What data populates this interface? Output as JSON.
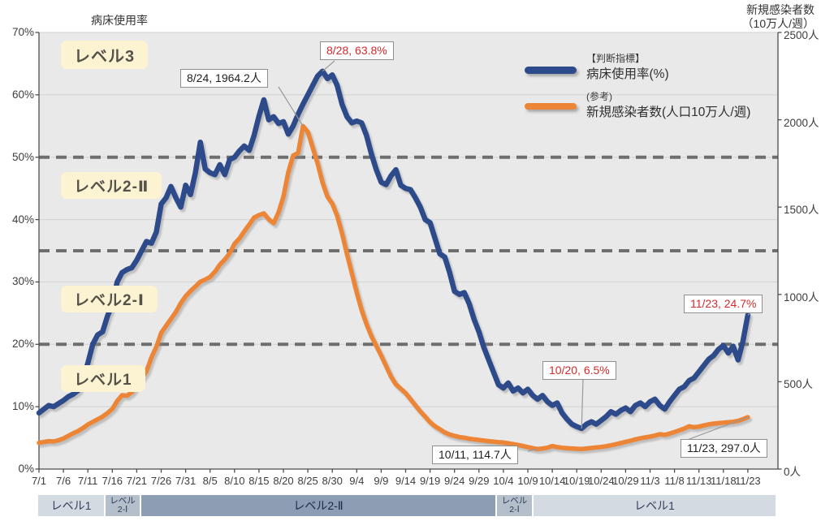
{
  "titles": {
    "left_axis_title": "病床使用率",
    "right_axis_title_line1": "新規感染者数",
    "right_axis_title_line2": "（10万人/週）"
  },
  "legend": {
    "group1_tag": "【判断指標】",
    "group1_label": "病床使用率(%)",
    "group2_tag": "(参考)",
    "group2_label": "新規感染者数(人口10万人/週)"
  },
  "level_zone_labels": [
    "レベル3",
    "レベル2-Ⅱ",
    "レベル2-Ⅰ",
    "レベル1"
  ],
  "level_bar": {
    "segments": [
      {
        "label": "レベル1",
        "from": "7/1",
        "to": "7/14"
      },
      {
        "label": "レベル\n2-Ⅰ",
        "from": "7/14",
        "to": "7/21"
      },
      {
        "label": "レベル2-Ⅱ",
        "from": "7/21",
        "to": "10/2"
      },
      {
        "label": "レベル\n2-Ⅰ",
        "from": "10/2",
        "to": "10/9"
      },
      {
        "label": "レベル1",
        "from": "10/9",
        "to": "11/23"
      }
    ]
  },
  "chart_data": {
    "type": "line",
    "x_start_date": "7/1",
    "x_end_date": "11/23",
    "x_tick_labels": [
      "7/1",
      "7/6",
      "7/11",
      "7/16",
      "7/21",
      "7/26",
      "7/31",
      "8/5",
      "8/10",
      "8/15",
      "8/20",
      "8/25",
      "8/30",
      "9/4",
      "9/9",
      "9/14",
      "9/19",
      "9/24",
      "9/29",
      "10/4",
      "10/9",
      "10/14",
      "10/19",
      "10/24",
      "10/29",
      "11/3",
      "11/8",
      "11/13",
      "11/18",
      "11/23"
    ],
    "left_axis": {
      "title": "病床使用率",
      "unit": "%",
      "min": 0,
      "max": 70,
      "tick_step": 10,
      "tick_labels": [
        "0%",
        "10%",
        "20%",
        "30%",
        "40%",
        "50%",
        "60%",
        "70%"
      ]
    },
    "right_axis": {
      "title": "新規感染者数（10万人/週）",
      "unit": "人",
      "min": 0,
      "max": 2500,
      "tick_step": 500,
      "tick_labels": [
        "0人",
        "500人",
        "1000人",
        "1500人",
        "2000人",
        "2500人"
      ]
    },
    "threshold_lines_pct": [
      20,
      35,
      50
    ],
    "grid": "horizontal 10% steps, dashed bold lines at level thresholds 20/35/50%",
    "legend_position": "top-right inside plot",
    "series": [
      {
        "name": "病床使用率(%)",
        "axis": "left",
        "color": "#2d4a8a",
        "values": [
          9.0,
          9.6,
          10.2,
          10.0,
          10.5,
          11.0,
          11.6,
          12.0,
          12.6,
          14.5,
          17.0,
          20.0,
          21.5,
          22.0,
          24.5,
          26.5,
          30.0,
          31.5,
          32.0,
          32.3,
          33.5,
          35.0,
          36.5,
          36.2,
          38.0,
          42.5,
          43.5,
          45.3,
          43.5,
          42.0,
          45.5,
          44.0,
          47.5,
          52.4,
          48.1,
          47.5,
          47.2,
          48.8,
          47.2,
          49.6,
          50.0,
          51.0,
          51.8,
          51.1,
          53.5,
          56.6,
          59.2,
          56.0,
          56.5,
          55.4,
          55.7,
          53.7,
          55.0,
          56.9,
          58.5,
          60.0,
          61.5,
          63.0,
          63.8,
          62.6,
          63.2,
          61.5,
          58.5,
          56.5,
          55.5,
          55.8,
          55.5,
          53.5,
          50.5,
          48.0,
          46.0,
          45.6,
          47.0,
          48.0,
          45.5,
          45.0,
          44.8,
          43.5,
          42.0,
          40.0,
          39.5,
          37.0,
          34.5,
          34.0,
          31.5,
          28.5,
          28.0,
          28.3,
          26.5,
          24.0,
          22.0,
          19.5,
          17.5,
          15.5,
          13.5,
          13.0,
          13.8,
          12.5,
          13.0,
          12.2,
          12.8,
          11.8,
          11.2,
          11.8,
          10.8,
          10.2,
          10.6,
          9.0,
          8.0,
          7.2,
          6.8,
          6.5,
          7.2,
          7.6,
          7.2,
          7.8,
          8.4,
          9.2,
          8.8,
          9.4,
          9.8,
          9.2,
          10.2,
          10.6,
          10.0,
          10.8,
          11.2,
          10.2,
          9.6,
          10.8,
          11.8,
          12.8,
          13.2,
          14.2,
          14.6,
          15.6,
          16.6,
          17.6,
          18.2,
          19.2,
          19.8,
          18.6,
          19.7,
          17.5,
          20.5,
          24.7
        ]
      },
      {
        "name": "新規感染者数(人口10万人/週)",
        "axis": "right",
        "color": "#ed8536",
        "values": [
          150,
          155,
          160,
          158,
          165,
          175,
          190,
          205,
          218,
          235,
          255,
          270,
          285,
          300,
          320,
          345,
          390,
          423,
          420,
          440,
          480,
          520,
          560,
          640,
          700,
          780,
          820,
          860,
          900,
          950,
          990,
          1020,
          1045,
          1073,
          1085,
          1100,
          1130,
          1170,
          1200,
          1236,
          1290,
          1320,
          1361,
          1400,
          1440,
          1454,
          1464,
          1430,
          1408,
          1470,
          1560,
          1700,
          1795,
          1810,
          1964.2,
          1930,
          1840,
          1750,
          1640,
          1560,
          1520,
          1450,
          1350,
          1230,
          1120,
          1010,
          910,
          830,
          760,
          705,
          650,
          590,
          530,
          485,
          460,
          435,
          400,
          365,
          330,
          300,
          268,
          245,
          228,
          210,
          198,
          190,
          183,
          180,
          174,
          170,
          167,
          163,
          160,
          157,
          154,
          152,
          148,
          143,
          138,
          132,
          126,
          120,
          114.7,
          118,
          122,
          132,
          126,
          122,
          120,
          118,
          116,
          115,
          118,
          121,
          124,
          127,
          131,
          136,
          142,
          149,
          156,
          162,
          170,
          176,
          181,
          186,
          192,
          200,
          196,
          203,
          212,
          222,
          232,
          245,
          240,
          243,
          250,
          256,
          260,
          263,
          266,
          268,
          271,
          276,
          286,
          297
        ]
      }
    ],
    "annotations": [
      {
        "text": "8/24, 1964.2人",
        "series": 1,
        "date": "8/24",
        "value": 1964.2,
        "color": "dark"
      },
      {
        "text": "8/28, 63.8%",
        "series": 0,
        "date": "8/28",
        "value": 63.8,
        "color": "red"
      },
      {
        "text": "11/23, 24.7%",
        "series": 0,
        "date": "11/23",
        "value": 24.7,
        "color": "red"
      },
      {
        "text": "10/20, 6.5%",
        "series": 0,
        "date": "10/20",
        "value": 6.5,
        "color": "red"
      },
      {
        "text": "10/11, 114.7人",
        "series": 1,
        "date": "10/11",
        "value": 114.7,
        "color": "dark"
      },
      {
        "text": "11/23, 297.0人",
        "series": 1,
        "date": "11/23",
        "value": 297.0,
        "color": "dark"
      }
    ]
  }
}
